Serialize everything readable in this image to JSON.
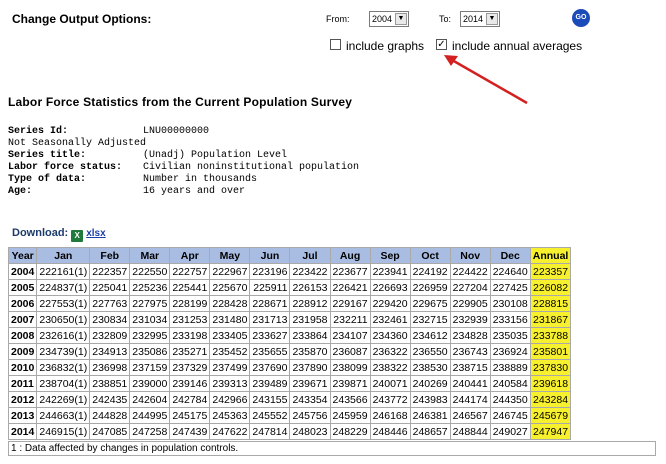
{
  "options": {
    "title": "Change Output Options:",
    "from_label": "From:",
    "from_value": "2004",
    "to_label": "To:",
    "to_value": "2014",
    "go_label": "GO",
    "include_graphs_label": "include graphs",
    "include_graphs_checked": false,
    "include_annual_label": "include annual averages",
    "include_annual_checked": true,
    "check_mark": "✓",
    "dropdown_glyph": "▼"
  },
  "heading": "Labor Force Statistics from the Current Population Survey",
  "series": [
    {
      "key": "Series Id:",
      "value": "LNU00000000",
      "bold": true
    },
    {
      "key": "Not Seasonally Adjusted",
      "value": "",
      "bold": false
    },
    {
      "key": "Series title:",
      "value": "(Unadj) Population Level",
      "bold": true
    },
    {
      "key": "Labor force status:",
      "value": "Civilian noninstitutional population",
      "bold": true
    },
    {
      "key": "Type of data:",
      "value": "Number in thousands",
      "bold": true
    },
    {
      "key": "Age:",
      "value": "16 years and over",
      "bold": true
    }
  ],
  "download": {
    "label": "Download:",
    "icon": "excel-icon",
    "icon_text": "X",
    "link": "xlsx"
  },
  "table": {
    "headers": [
      "Year",
      "Jan",
      "Feb",
      "Mar",
      "Apr",
      "May",
      "Jun",
      "Jul",
      "Aug",
      "Sep",
      "Oct",
      "Nov",
      "Dec",
      "Annual"
    ],
    "rows": [
      [
        "2004",
        "222161(1)",
        "222357",
        "222550",
        "222757",
        "222967",
        "223196",
        "223422",
        "223677",
        "223941",
        "224192",
        "224422",
        "224640",
        "223357"
      ],
      [
        "2005",
        "224837(1)",
        "225041",
        "225236",
        "225441",
        "225670",
        "225911",
        "226153",
        "226421",
        "226693",
        "226959",
        "227204",
        "227425",
        "226082"
      ],
      [
        "2006",
        "227553(1)",
        "227763",
        "227975",
        "228199",
        "228428",
        "228671",
        "228912",
        "229167",
        "229420",
        "229675",
        "229905",
        "230108",
        "228815"
      ],
      [
        "2007",
        "230650(1)",
        "230834",
        "231034",
        "231253",
        "231480",
        "231713",
        "231958",
        "232211",
        "232461",
        "232715",
        "232939",
        "233156",
        "231867"
      ],
      [
        "2008",
        "232616(1)",
        "232809",
        "232995",
        "233198",
        "233405",
        "233627",
        "233864",
        "234107",
        "234360",
        "234612",
        "234828",
        "235035",
        "233788"
      ],
      [
        "2009",
        "234739(1)",
        "234913",
        "235086",
        "235271",
        "235452",
        "235655",
        "235870",
        "236087",
        "236322",
        "236550",
        "236743",
        "236924",
        "235801"
      ],
      [
        "2010",
        "236832(1)",
        "236998",
        "237159",
        "237329",
        "237499",
        "237690",
        "237890",
        "238099",
        "238322",
        "238530",
        "238715",
        "238889",
        "237830"
      ],
      [
        "2011",
        "238704(1)",
        "238851",
        "239000",
        "239146",
        "239313",
        "239489",
        "239671",
        "239871",
        "240071",
        "240269",
        "240441",
        "240584",
        "239618"
      ],
      [
        "2012",
        "242269(1)",
        "242435",
        "242604",
        "242784",
        "242966",
        "243155",
        "243354",
        "243566",
        "243772",
        "243983",
        "244174",
        "244350",
        "243284"
      ],
      [
        "2013",
        "244663(1)",
        "244828",
        "244995",
        "245175",
        "245363",
        "245552",
        "245756",
        "245959",
        "246168",
        "246381",
        "246567",
        "246745",
        "245679"
      ],
      [
        "2014",
        "246915(1)",
        "247085",
        "247258",
        "247439",
        "247622",
        "247814",
        "248023",
        "248229",
        "248446",
        "248657",
        "248844",
        "249027",
        "247947"
      ]
    ],
    "footnote": "1 : Data affected by changes in population controls."
  },
  "colors": {
    "header_bg": "#a9bde3",
    "annual_bg": "#f7f02e",
    "go_button": "#1b4bb8",
    "arrow": "#d32020"
  }
}
